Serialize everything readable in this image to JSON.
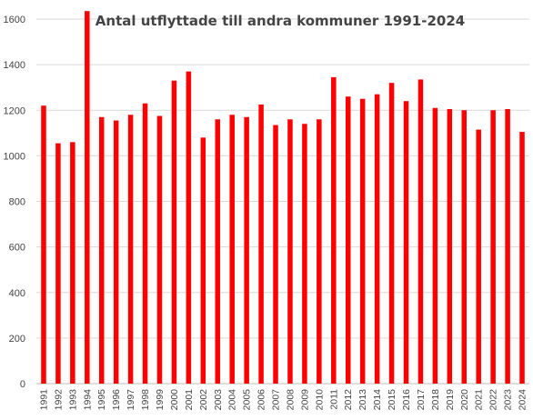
{
  "chart_data": {
    "type": "bar",
    "title": "Antal utflyttade till andra kommuner 1991-2024",
    "xlabel": "",
    "ylabel": "",
    "ylim": [
      0,
      1600
    ],
    "yticks": [
      "0",
      "200",
      "400",
      "600",
      "800",
      "1000",
      "1200",
      "1400",
      "1600"
    ],
    "grid": true,
    "legend": "none",
    "bar_color": "#ff0000",
    "categories": [
      "1991",
      "1992",
      "1993",
      "1994",
      "1995",
      "1996",
      "1997",
      "1998",
      "1999",
      "2000",
      "2001",
      "2002",
      "2003",
      "2004",
      "2005",
      "2006",
      "2007",
      "2008",
      "2009",
      "2010",
      "2011",
      "2012",
      "2013",
      "2014",
      "2015",
      "2016",
      "2017",
      "2018",
      "2019",
      "2020",
      "2021",
      "2022",
      "2023",
      "2024"
    ],
    "values": [
      1220,
      1055,
      1060,
      1635,
      1170,
      1155,
      1180,
      1230,
      1175,
      1330,
      1370,
      1080,
      1160,
      1180,
      1170,
      1225,
      1135,
      1160,
      1140,
      1160,
      1345,
      1260,
      1250,
      1270,
      1320,
      1240,
      1335,
      1210,
      1205,
      1200,
      1115,
      1200,
      1205,
      1105
    ]
  }
}
